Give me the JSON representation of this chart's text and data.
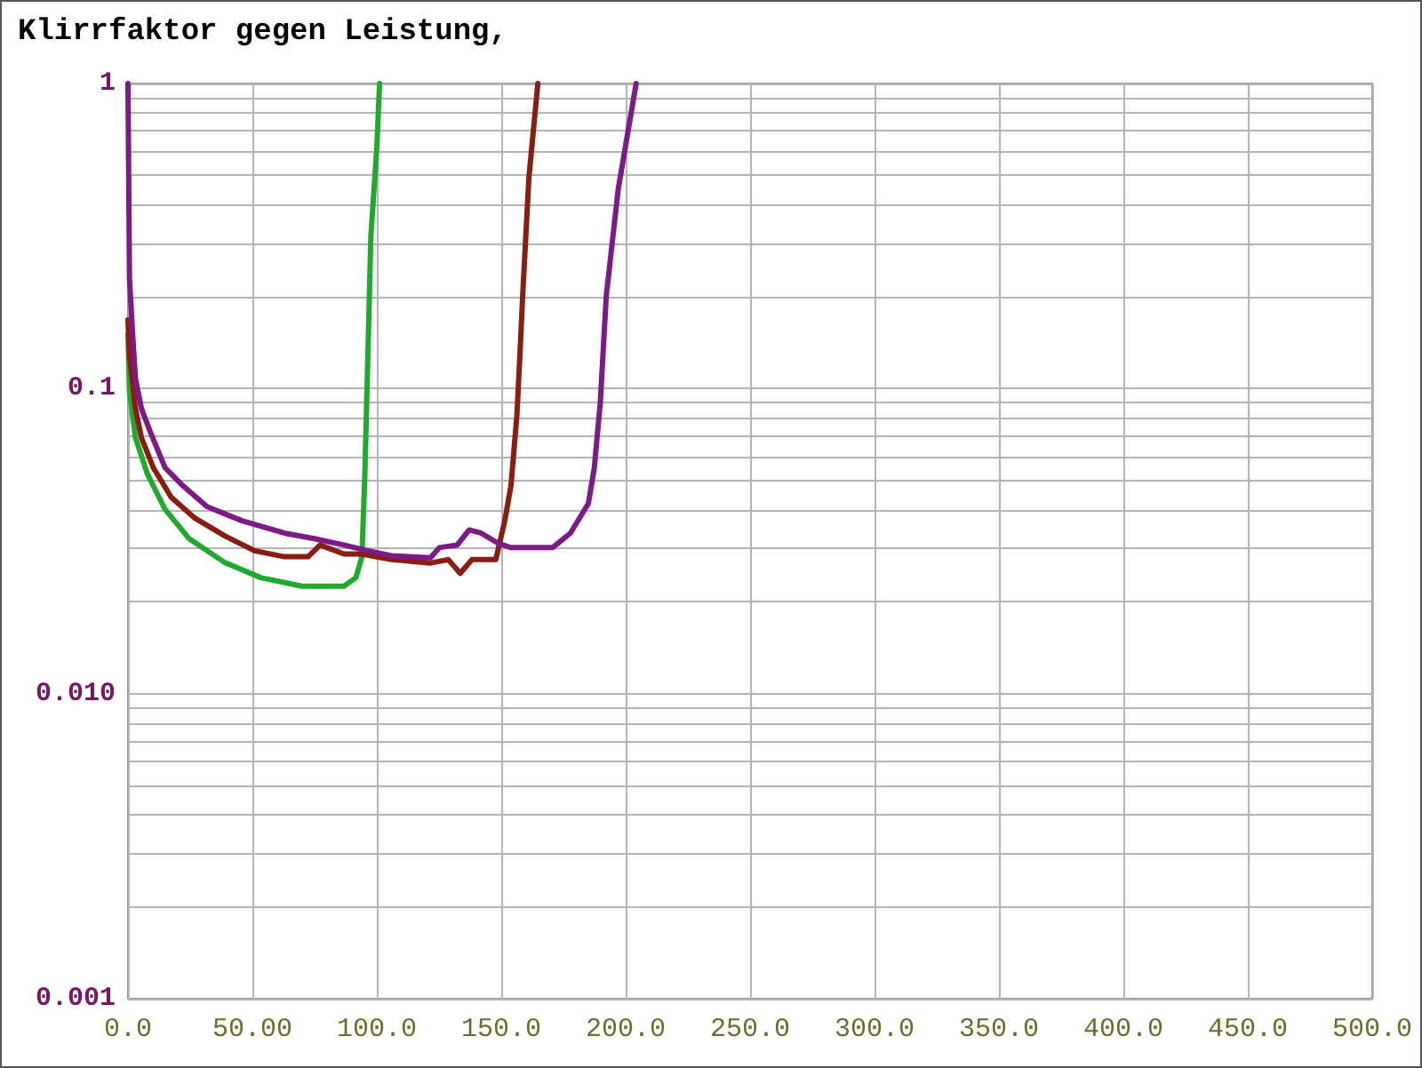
{
  "chart_data": {
    "type": "line",
    "title": "Klirrfaktor gegen Leistung,",
    "log": true,
    "grid": true,
    "marker": "none",
    "line_style": "solid",
    "xlim": [
      0,
      500
    ],
    "xticks": [
      {
        "value": 0,
        "label": "0.0"
      },
      {
        "value": 50,
        "label": "50.00"
      },
      {
        "value": 100,
        "label": "100.0"
      },
      {
        "value": 150,
        "label": "150.0"
      },
      {
        "value": 200,
        "label": "200.0"
      },
      {
        "value": 250,
        "label": "250.0"
      },
      {
        "value": 300,
        "label": "300.0"
      },
      {
        "value": 350,
        "label": "350.0"
      },
      {
        "value": 400,
        "label": "400.0"
      },
      {
        "value": 450,
        "label": "450.0"
      },
      {
        "value": 500,
        "label": "500.0"
      }
    ],
    "ylim": [
      0.001,
      1
    ],
    "yticks": [
      0.001,
      {
        "value": 0.002,
        "label": null
      },
      {
        "value": 0.003,
        "label": null
      },
      {
        "value": 0.004,
        "label": null
      },
      {
        "value": 0.005,
        "label": null
      },
      {
        "value": 0.006,
        "label": null
      },
      {
        "value": 0.007,
        "label": null
      },
      {
        "value": 0.008,
        "label": null
      },
      {
        "value": 0.009,
        "label": null
      },
      {
        "value": 0.01,
        "label": "0.010"
      },
      {
        "value": 0.02,
        "label": null
      },
      {
        "value": 0.03,
        "label": null
      },
      {
        "value": 0.04,
        "label": null
      },
      {
        "value": 0.05,
        "label": null
      },
      {
        "value": 0.06,
        "label": null
      },
      {
        "value": 0.07,
        "label": null
      },
      {
        "value": 0.08,
        "label": null
      },
      {
        "value": 0.09,
        "label": null
      },
      0.1,
      {
        "value": 0.2,
        "label": null
      },
      {
        "value": 0.3,
        "label": null
      },
      {
        "value": 0.4,
        "label": null
      },
      {
        "value": 0.5,
        "label": null
      },
      {
        "value": 0.6,
        "label": null
      },
      {
        "value": 0.7,
        "label": null
      },
      {
        "value": 0.8,
        "label": null
      },
      {
        "value": 0.9,
        "label": null
      },
      1
    ],
    "series": [
      {
        "color": "#1faa2e",
        "x": [
          0,
          0.6,
          3,
          7.8,
          14.9,
          24.6,
          38.9,
          53.3,
          70,
          86.8,
          91.6,
          94,
          95.2,
          96.4,
          97.6,
          100,
          101.1
        ],
        "values": [
          0.151,
          0.098,
          0.069,
          0.0525,
          0.0402,
          0.0322,
          0.0269,
          0.024,
          0.0225,
          0.0225,
          0.024,
          0.0281,
          0.0525,
          0.129,
          0.315,
          0.617,
          1.0
        ]
      },
      {
        "color": "#8b1c10",
        "x": [
          0,
          0.6,
          3,
          5.4,
          10.2,
          17.4,
          26.9,
          38.9,
          50.9,
          62.9,
          72.4,
          77.2,
          86.8,
          94,
          106,
          121.6,
          128.7,
          133.5,
          138.2,
          147.8,
          151.4,
          153.9,
          156.3,
          157.5,
          158.6,
          161.1,
          164.7
        ],
        "values": [
          0.168,
          0.129,
          0.086,
          0.069,
          0.055,
          0.044,
          0.0376,
          0.0329,
          0.0294,
          0.0281,
          0.0281,
          0.0307,
          0.0287,
          0.0287,
          0.0275,
          0.0268,
          0.0275,
          0.0248,
          0.0275,
          0.0275,
          0.0368,
          0.048,
          0.082,
          0.129,
          0.201,
          0.49,
          1.0
        ]
      },
      {
        "color": "#7d1a88",
        "x": [
          0,
          0.6,
          1.8,
          3,
          5.4,
          9,
          14.9,
          22.1,
          31.8,
          46.1,
          62.9,
          74.9,
          86.8,
          96.4,
          106,
          121.6,
          125.1,
          132.3,
          137.1,
          141.9,
          149.1,
          153.9,
          170.6,
          177.8,
          185,
          187.4,
          189.8,
          192.2,
          197,
          204.2
        ],
        "values": [
          1.0,
          0.23,
          0.154,
          0.108,
          0.086,
          0.072,
          0.055,
          0.048,
          0.041,
          0.0368,
          0.0336,
          0.0322,
          0.0307,
          0.0294,
          0.0283,
          0.0279,
          0.0301,
          0.0307,
          0.0344,
          0.0336,
          0.031,
          0.0301,
          0.0301,
          0.0336,
          0.042,
          0.055,
          0.09,
          0.201,
          0.45,
          1.0
        ]
      }
    ]
  }
}
